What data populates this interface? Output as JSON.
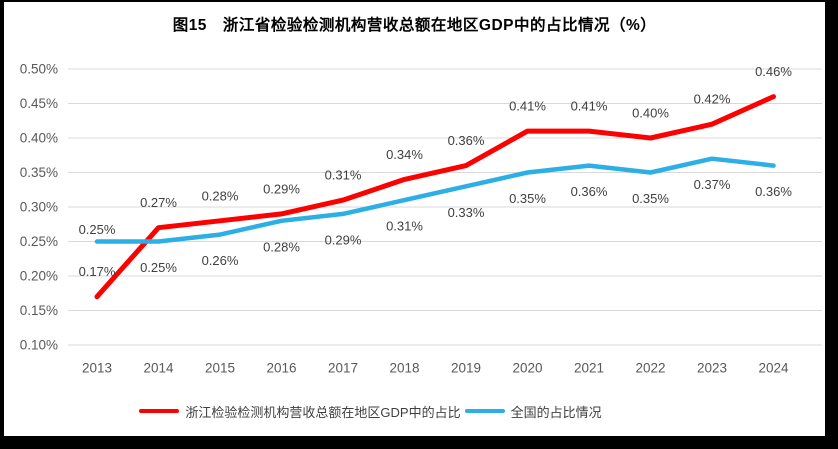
{
  "chart_data": {
    "type": "line",
    "title": "图15　浙江省检验检测机构营收总额在地区GDP中的占比情况（%）",
    "categories": [
      "2013",
      "2014",
      "2015",
      "2016",
      "2017",
      "2018",
      "2019",
      "2020",
      "2021",
      "2022",
      "2023",
      "2024"
    ],
    "series": [
      {
        "name": "浙江检验检测机构营收总额在地区GDP中的占比",
        "color": "#FE0000",
        "line_width": 5,
        "values": [
          0.17,
          0.27,
          0.28,
          0.29,
          0.31,
          0.34,
          0.36,
          0.41,
          0.41,
          0.4,
          0.42,
          0.46
        ],
        "labels": [
          "0.17%",
          "0.27%",
          "0.28%",
          "0.29%",
          "0.31%",
          "0.34%",
          "0.36%",
          "0.41%",
          "0.41%",
          "0.40%",
          "0.42%",
          "0.46%"
        ],
        "label_position": "above"
      },
      {
        "name": "全国的占比情况",
        "color": "#2BAFE4",
        "line_width": 4.5,
        "values": [
          0.25,
          0.25,
          0.26,
          0.28,
          0.29,
          0.31,
          0.33,
          0.35,
          0.36,
          0.35,
          0.37,
          0.36
        ],
        "labels": [
          "0.25%",
          "0.25%",
          "0.26%",
          "0.28%",
          "0.29%",
          "0.31%",
          "0.33%",
          "0.35%",
          "0.36%",
          "0.35%",
          "0.37%",
          "0.36%"
        ],
        "label_position": "below",
        "label_position_overrides": {
          "0": "above"
        }
      }
    ],
    "y_axis": {
      "min": 0.1,
      "max": 0.5,
      "step": 0.05,
      "tick_labels": [
        "0.10%",
        "0.15%",
        "0.20%",
        "0.25%",
        "0.30%",
        "0.35%",
        "0.40%",
        "0.45%",
        "0.50%"
      ]
    },
    "grid": true,
    "gridline_color": "#D9D9D9",
    "tick_color": "#595959",
    "data_label_color": "#404040",
    "legend_position": "bottom"
  }
}
